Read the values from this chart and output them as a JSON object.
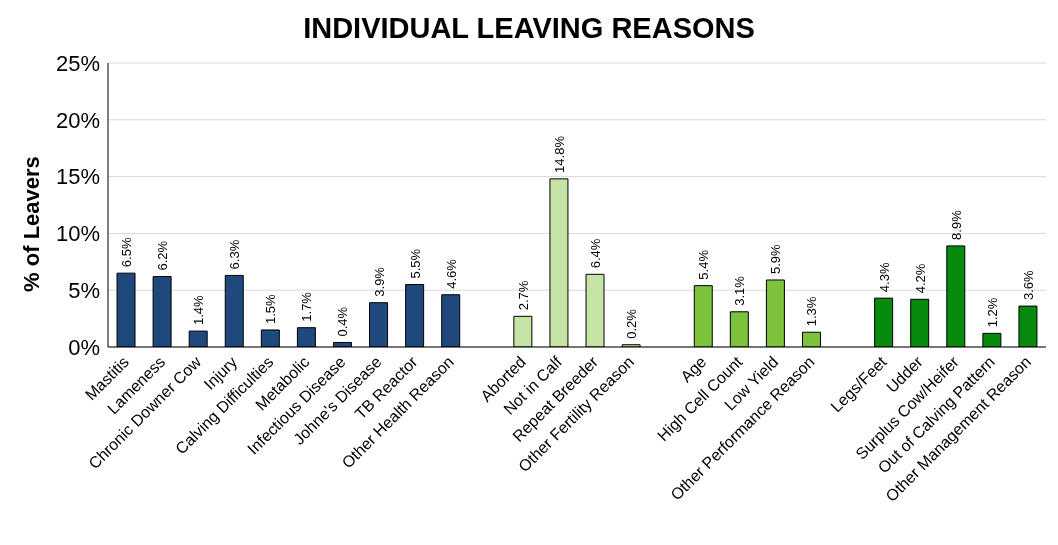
{
  "chart_data": {
    "type": "bar",
    "title": "INDIVIDUAL LEAVING REASONS",
    "ylabel": "% of Leavers",
    "categories": [
      "Mastitis",
      "Lameness",
      "Chronic Downer Cow",
      "Injury",
      "Calving Difficulties",
      "Metabolic",
      "Infectious Disease",
      "Johne's Disease",
      "TB Reactor",
      "Other Health Reason",
      null,
      "Aborted",
      "Not in Calf",
      "Repeat Breeder",
      "Other Fertility Reason",
      null,
      "Age",
      "High Cell Count",
      "Low Yield",
      "Other Performance Reason",
      null,
      "Legs/Feet",
      "Udder",
      "Surplus Cow/Heifer",
      "Out of Calving Pattern",
      "Other Management Reason"
    ],
    "values": [
      6.5,
      6.2,
      1.4,
      6.3,
      1.5,
      1.7,
      0.4,
      3.9,
      5.5,
      4.6,
      null,
      2.7,
      14.8,
      6.4,
      0.2,
      null,
      5.4,
      3.1,
      5.9,
      1.3,
      null,
      4.3,
      4.2,
      8.9,
      1.2,
      3.6
    ],
    "value_labels": [
      "6.5%",
      "6.2%",
      "1.4%",
      "6.3%",
      "1.5%",
      "1.7%",
      "0.4%",
      "3.9%",
      "5.5%",
      "4.6%",
      null,
      "2.7%",
      "14.8%",
      "6.4%",
      "0.2%",
      null,
      "5.4%",
      "3.1%",
      "5.9%",
      "1.3%",
      null,
      "4.3%",
      "4.2%",
      "8.9%",
      "1.2%",
      "3.6%"
    ],
    "colors": [
      "#1f497d",
      "#1f497d",
      "#1f497d",
      "#1f497d",
      "#1f497d",
      "#1f497d",
      "#1f497d",
      "#1f497d",
      "#1f497d",
      "#1f497d",
      null,
      "#c4e3a4",
      "#c4e3a4",
      "#c4e3a4",
      "#c4e3a4",
      null,
      "#7dc23c",
      "#7dc23c",
      "#7dc23c",
      "#7dc23c",
      null,
      "#078a0e",
      "#078a0e",
      "#078a0e",
      "#078a0e",
      "#078a0e"
    ],
    "ylim": [
      0,
      25
    ],
    "yticks": [
      {
        "value": 0,
        "label": "0%"
      },
      {
        "value": 5,
        "label": "5%"
      },
      {
        "value": 10,
        "label": "10%"
      },
      {
        "value": 15,
        "label": "15%"
      },
      {
        "value": 20,
        "label": "20%"
      },
      {
        "value": 25,
        "label": "25%"
      }
    ],
    "grid": "y"
  }
}
